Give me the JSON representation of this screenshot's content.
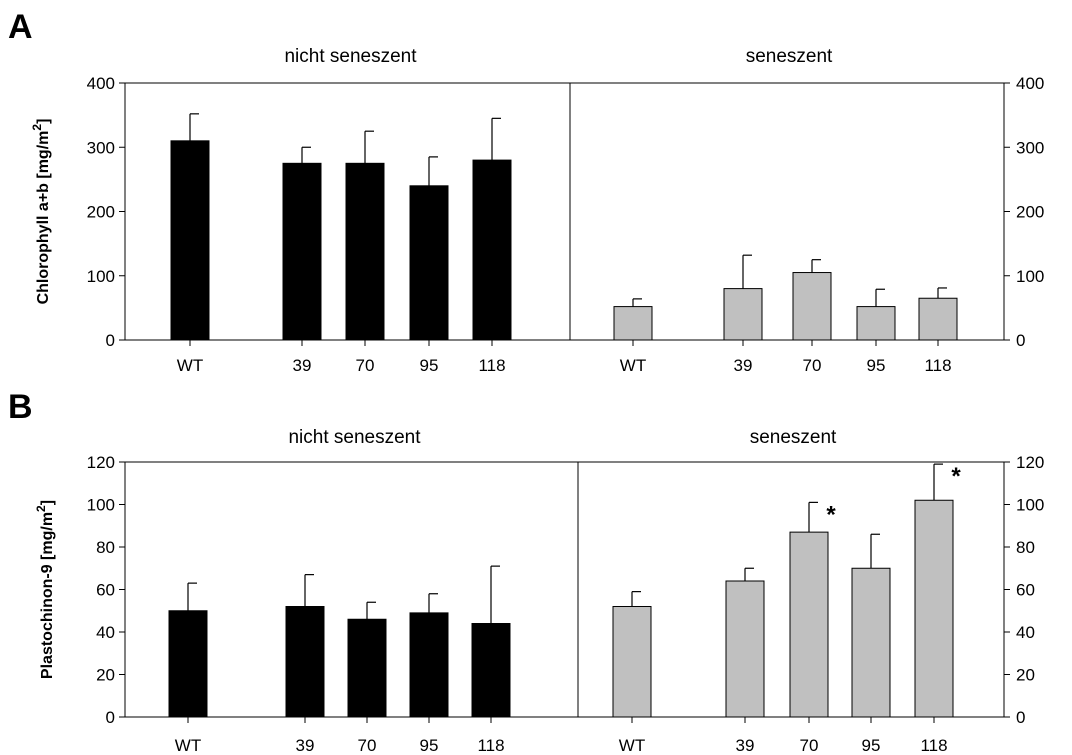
{
  "chart_data": [
    {
      "type": "bar",
      "panel": "A",
      "ylabel": "Chlorophyll a+b [mg/m2]",
      "ylabel_main": "Chlorophyll a+b [mg/m",
      "ylabel_sup": "2",
      "ylabel_end": "]",
      "ylim": [
        0,
        400
      ],
      "yticks": [
        0,
        100,
        200,
        300,
        400
      ],
      "categories": [
        "WT",
        "39",
        "70",
        "95",
        "118"
      ],
      "groups": [
        {
          "name": "nicht seneszent",
          "color": "#000000",
          "values": [
            310,
            275,
            275,
            240,
            280
          ],
          "errors": [
            42,
            25,
            50,
            45,
            65
          ],
          "sig": [
            false,
            false,
            false,
            false,
            false
          ]
        },
        {
          "name": "seneszent",
          "color": "#c0c0c0",
          "values": [
            52,
            80,
            105,
            52,
            65
          ],
          "errors": [
            12,
            52,
            20,
            27,
            16
          ],
          "sig": [
            false,
            false,
            false,
            false,
            false
          ]
        }
      ]
    },
    {
      "type": "bar",
      "panel": "B",
      "ylabel": "Plastochinon-9 [mg/m2]",
      "ylabel_main": "Plastochinon-9 [mg/m",
      "ylabel_sup": "2",
      "ylabel_end": "]",
      "ylim": [
        0,
        120
      ],
      "yticks": [
        0,
        20,
        40,
        60,
        80,
        100,
        120
      ],
      "categories": [
        "WT",
        "39",
        "70",
        "95",
        "118"
      ],
      "groups": [
        {
          "name": "nicht seneszent",
          "color": "#000000",
          "values": [
            50,
            52,
            46,
            49,
            44
          ],
          "errors": [
            13,
            15,
            8,
            9,
            27
          ],
          "sig": [
            false,
            false,
            false,
            false,
            false
          ]
        },
        {
          "name": "seneszent",
          "color": "#c0c0c0",
          "values": [
            52,
            64,
            87,
            70,
            102
          ],
          "errors": [
            7,
            6,
            14,
            16,
            17
          ],
          "sig": [
            false,
            false,
            true,
            false,
            true
          ]
        }
      ]
    }
  ],
  "sig_marker": "*"
}
